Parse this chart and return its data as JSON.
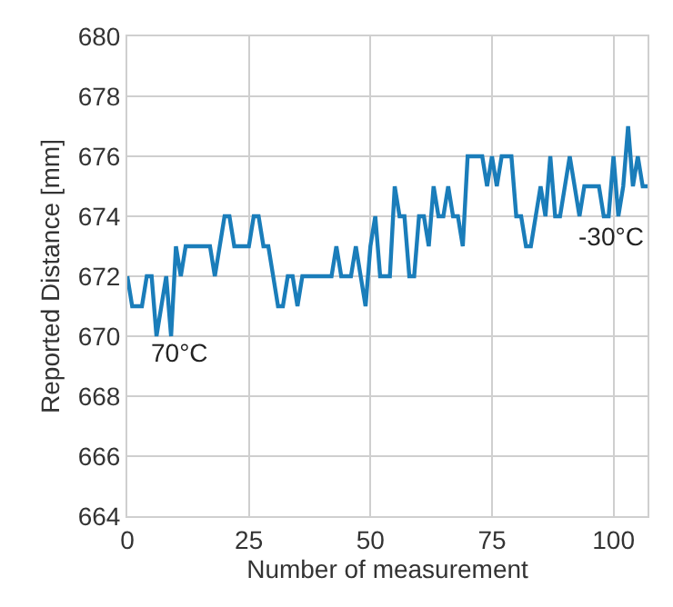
{
  "chart_data": {
    "type": "line",
    "xlabel": "Number of measurement",
    "ylabel": "Reported Distance [mm]",
    "x": [
      0,
      1,
      2,
      3,
      4,
      5,
      6,
      7,
      8,
      9,
      10,
      11,
      12,
      13,
      14,
      15,
      16,
      17,
      18,
      19,
      20,
      21,
      22,
      23,
      24,
      25,
      26,
      27,
      28,
      29,
      30,
      31,
      32,
      33,
      34,
      35,
      36,
      37,
      38,
      39,
      40,
      41,
      42,
      43,
      44,
      45,
      46,
      47,
      48,
      49,
      50,
      51,
      52,
      53,
      54,
      55,
      56,
      57,
      58,
      59,
      60,
      61,
      62,
      63,
      64,
      65,
      66,
      67,
      68,
      69,
      70,
      71,
      72,
      73,
      74,
      75,
      76,
      77,
      78,
      79,
      80,
      81,
      82,
      83,
      84,
      85,
      86,
      87,
      88,
      89,
      90,
      91,
      92,
      93,
      94,
      95,
      96,
      97,
      98,
      99,
      100,
      101,
      102,
      103,
      104,
      105,
      106,
      107
    ],
    "series": [
      {
        "color": "#1a7dba",
        "values": [
          672,
          671,
          671,
          671,
          672,
          672,
          670,
          671,
          672,
          670,
          673,
          672,
          673,
          673,
          673,
          673,
          673,
          673,
          672,
          673,
          674,
          674,
          673,
          673,
          673,
          673,
          674,
          674,
          673,
          673,
          672,
          671,
          671,
          672,
          672,
          671,
          672,
          672,
          672,
          672,
          672,
          672,
          672,
          673,
          672,
          672,
          672,
          673,
          672,
          671,
          673,
          674,
          672,
          672,
          672,
          675,
          674,
          674,
          672,
          672,
          674,
          674,
          673,
          675,
          674,
          674,
          675,
          674,
          674,
          673,
          676,
          676,
          676,
          676,
          675,
          676,
          675,
          676,
          676,
          676,
          674,
          674,
          673,
          673,
          674,
          675,
          674,
          676,
          674,
          674,
          675,
          676,
          675,
          674,
          675,
          675,
          675,
          675,
          674,
          674,
          676,
          674,
          675,
          677,
          675,
          676,
          675,
          675
        ]
      }
    ],
    "xlim": [
      0,
      107
    ],
    "xticks": [
      0,
      25,
      50,
      75,
      100
    ],
    "ylim": [
      664,
      680
    ],
    "yticks": [
      664,
      666,
      668,
      670,
      672,
      674,
      676,
      678,
      680
    ],
    "grid": true,
    "marker": "none",
    "line_style": "solid",
    "annotations": [
      "70°C",
      "-30°C"
    ]
  }
}
